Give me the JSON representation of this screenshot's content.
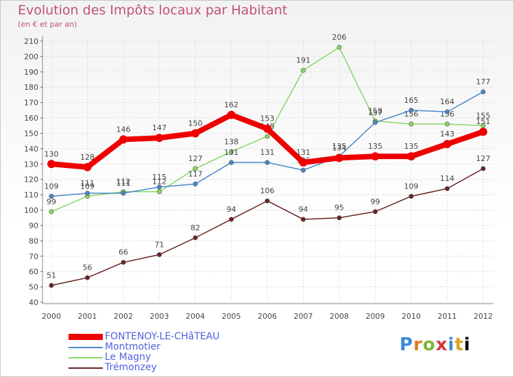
{
  "chart_data": {
    "type": "line",
    "title": "Evolution des Impôts locaux par Habitant",
    "subtitle": "(en € et par an)",
    "categories": [
      "2000",
      "2001",
      "2002",
      "2003",
      "2004",
      "2005",
      "2006",
      "2007",
      "2008",
      "2009",
      "2010",
      "2011",
      "2012"
    ],
    "ylim": [
      40,
      210
    ],
    "yticks": [
      40,
      50,
      60,
      70,
      80,
      90,
      100,
      110,
      120,
      130,
      140,
      150,
      160,
      170,
      180,
      190,
      200,
      210
    ],
    "series": [
      {
        "name": "FONTENOY-LE-CHâTEAU",
        "color": "#ee0000",
        "values": [
          130,
          128,
          146,
          147,
          150,
          162,
          153,
          131,
          134,
          135,
          135,
          143,
          151
        ]
      },
      {
        "name": "Montmotier",
        "color": "#4a86c8",
        "values": [
          109,
          111,
          111,
          115,
          117,
          131,
          131,
          126,
          135,
          157,
          165,
          164,
          177
        ]
      },
      {
        "name": "Le Magny",
        "color": "#88d860",
        "values": [
          99,
          109,
          112,
          112,
          127,
          138,
          148,
          191,
          206,
          158,
          156,
          156,
          155
        ]
      },
      {
        "name": "Trémonzey",
        "color": "#6a2222",
        "values": [
          51,
          56,
          66,
          71,
          82,
          94,
          106,
          94,
          95,
          99,
          109,
          114,
          127
        ]
      }
    ]
  },
  "logo": {
    "letters": [
      "P",
      "r",
      "o",
      "x",
      "i",
      "t",
      "i"
    ]
  }
}
